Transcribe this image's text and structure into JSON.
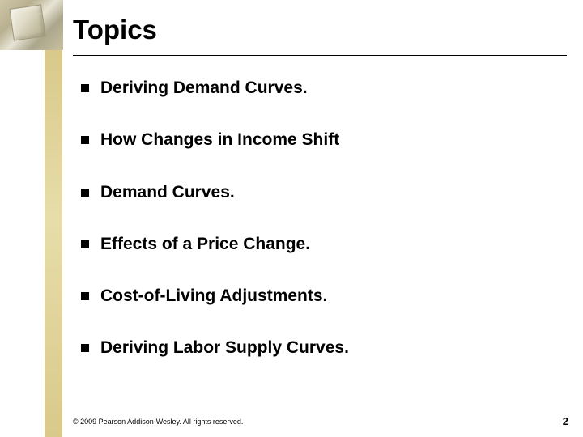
{
  "slide": {
    "title": "Topics",
    "bullets": [
      "Deriving Demand Curves.",
      "How Changes in Income Shift",
      "Demand Curves.",
      "Effects of a Price Change.",
      "Cost-of-Living Adjustments.",
      "Deriving Labor Supply Curves."
    ],
    "copyright": "© 2009 Pearson Addison-Wesley. All rights reserved.",
    "page_number": "2"
  },
  "style": {
    "background": "#ffffff",
    "stripe_color_top": "#d9c98a",
    "stripe_color_mid": "#e8dda9",
    "text_color": "#000000",
    "title_fontsize": 33,
    "bullet_fontsize": 21,
    "copyright_fontsize": 9,
    "pagenum_fontsize": 13,
    "bullet_spacing": 38
  }
}
